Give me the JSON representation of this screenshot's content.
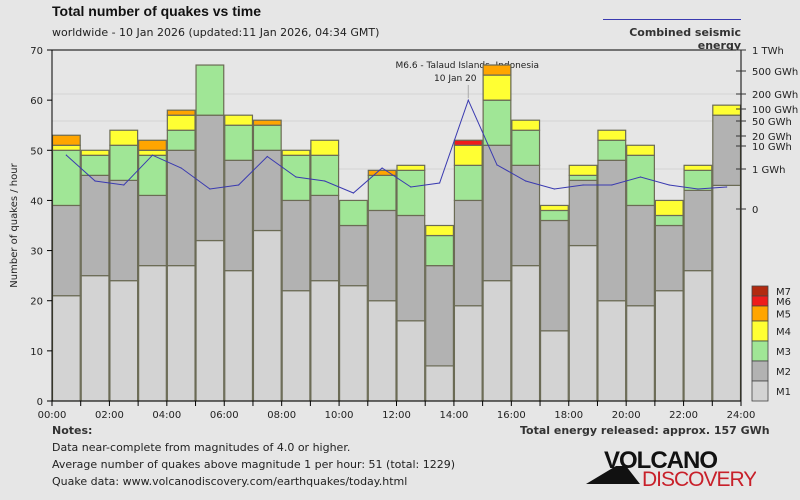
{
  "header": {
    "title": "Total number of quakes vs time",
    "subtitle": "worldwide - 10 Jan 2026 (updated:11 Jan 2026, 04:34 GMT)",
    "energy_legend": "Combined seismic energy"
  },
  "notes": {
    "title": "Notes:",
    "lines": [
      "Data near-complete from magnitudes of 4.0 or higher.",
      "Average number of quakes above magnitude 1 per hour: 51 (total: 1229)",
      "Quake data: www.volcanodiscovery.com/earthquakes/today.html"
    ],
    "energy_total": "Total energy released: approx. 157 GWh"
  },
  "logo": {
    "line1": "VOLCANO",
    "line2": "DISCOVERY"
  },
  "chart_data": {
    "type": "bar",
    "stacked": true,
    "title": "Total number of quakes vs time",
    "ylabel": "Number of quakes / hour",
    "ylim": [
      0,
      70
    ],
    "yticks": [
      0,
      10,
      20,
      30,
      40,
      50,
      60,
      70
    ],
    "xticks": [
      "00:00",
      "02:00",
      "04:00",
      "06:00",
      "08:00",
      "10:00",
      "12:00",
      "14:00",
      "16:00",
      "18:00",
      "20:00",
      "22:00",
      "24:00"
    ],
    "categories": [
      "00",
      "01",
      "02",
      "03",
      "04",
      "05",
      "06",
      "07",
      "08",
      "09",
      "10",
      "11",
      "12",
      "13",
      "14",
      "15",
      "16",
      "17",
      "18",
      "19",
      "20",
      "21",
      "22",
      "23"
    ],
    "series": [
      {
        "name": "M1",
        "color": "#d3d3d3",
        "values": [
          21,
          25,
          24,
          27,
          27,
          32,
          26,
          34,
          22,
          24,
          23,
          20,
          16,
          7,
          19,
          24,
          27,
          14,
          31,
          20,
          19,
          22,
          26,
          43
        ]
      },
      {
        "name": "M2",
        "color": "#b2b2b2",
        "values": [
          18,
          20,
          20,
          14,
          23,
          25,
          22,
          16,
          18,
          17,
          12,
          18,
          21,
          20,
          21,
          27,
          20,
          22,
          13,
          28,
          20,
          13,
          16,
          14
        ]
      },
      {
        "name": "M3",
        "color": "#a0e696",
        "values": [
          11,
          4,
          7,
          8,
          4,
          10,
          7,
          5,
          9,
          8,
          5,
          7,
          9,
          6,
          7,
          9,
          7,
          2,
          1,
          4,
          10,
          2,
          4,
          0
        ]
      },
      {
        "name": "M4",
        "color": "#ffff33",
        "values": [
          1,
          1,
          3,
          1,
          3,
          0,
          2,
          0,
          1,
          3,
          0,
          0,
          1,
          2,
          4,
          5,
          2,
          1,
          2,
          2,
          2,
          3,
          1,
          2
        ]
      },
      {
        "name": "M5",
        "color": "#ffa500",
        "values": [
          2,
          0,
          0,
          2,
          1,
          0,
          0,
          1,
          0,
          0,
          0,
          1,
          0,
          0,
          0,
          2,
          0,
          0,
          0,
          0,
          0,
          0,
          0,
          0
        ]
      },
      {
        "name": "M6",
        "color": "#ee1c1c",
        "values": [
          0,
          0,
          0,
          0,
          0,
          0,
          0,
          0,
          0,
          0,
          0,
          0,
          0,
          0,
          1,
          0,
          0,
          0,
          0,
          0,
          0,
          0,
          0,
          0
        ]
      },
      {
        "name": "M7",
        "color": "#b22a10",
        "values": [
          0,
          0,
          0,
          0,
          0,
          0,
          0,
          0,
          0,
          0,
          0,
          0,
          0,
          0,
          0,
          0,
          0,
          0,
          0,
          0,
          0,
          0,
          0,
          0
        ]
      }
    ],
    "legend": [
      "M7",
      "M6",
      "M5",
      "M4",
      "M3",
      "M2",
      "M1"
    ],
    "legend_position": "bottom-right",
    "energy": {
      "name": "Combined seismic energy",
      "unit": "GWh",
      "color": "#3a3ab0",
      "values": [
        4,
        0.7,
        0.6,
        4,
        1.1,
        0.5,
        0.6,
        3.5,
        0.8,
        0.7,
        0.4,
        1.1,
        0.55,
        0.65,
        150,
        1.5,
        0.7,
        0.5,
        0.6,
        0.6,
        0.8,
        0.6,
        0.5,
        0.55
      ],
      "ticks": [
        {
          "label": "0",
          "value": 0
        },
        {
          "label": "1 GWh",
          "value": 1
        },
        {
          "label": "10 GWh",
          "value": 10
        },
        {
          "label": "20 GWh",
          "value": 20
        },
        {
          "label": "50 GWh",
          "value": 50
        },
        {
          "label": "100 GWh",
          "value": 100
        },
        {
          "label": "200 GWh",
          "value": 200
        },
        {
          "label": "500 GWh",
          "value": 500
        },
        {
          "label": "1 TWh",
          "value": 1000
        }
      ]
    },
    "annotation": {
      "line1": "M6.6 - Talaud Islands, Indonesia",
      "line2": "10 Jan 20",
      "hour_index": 14
    }
  }
}
